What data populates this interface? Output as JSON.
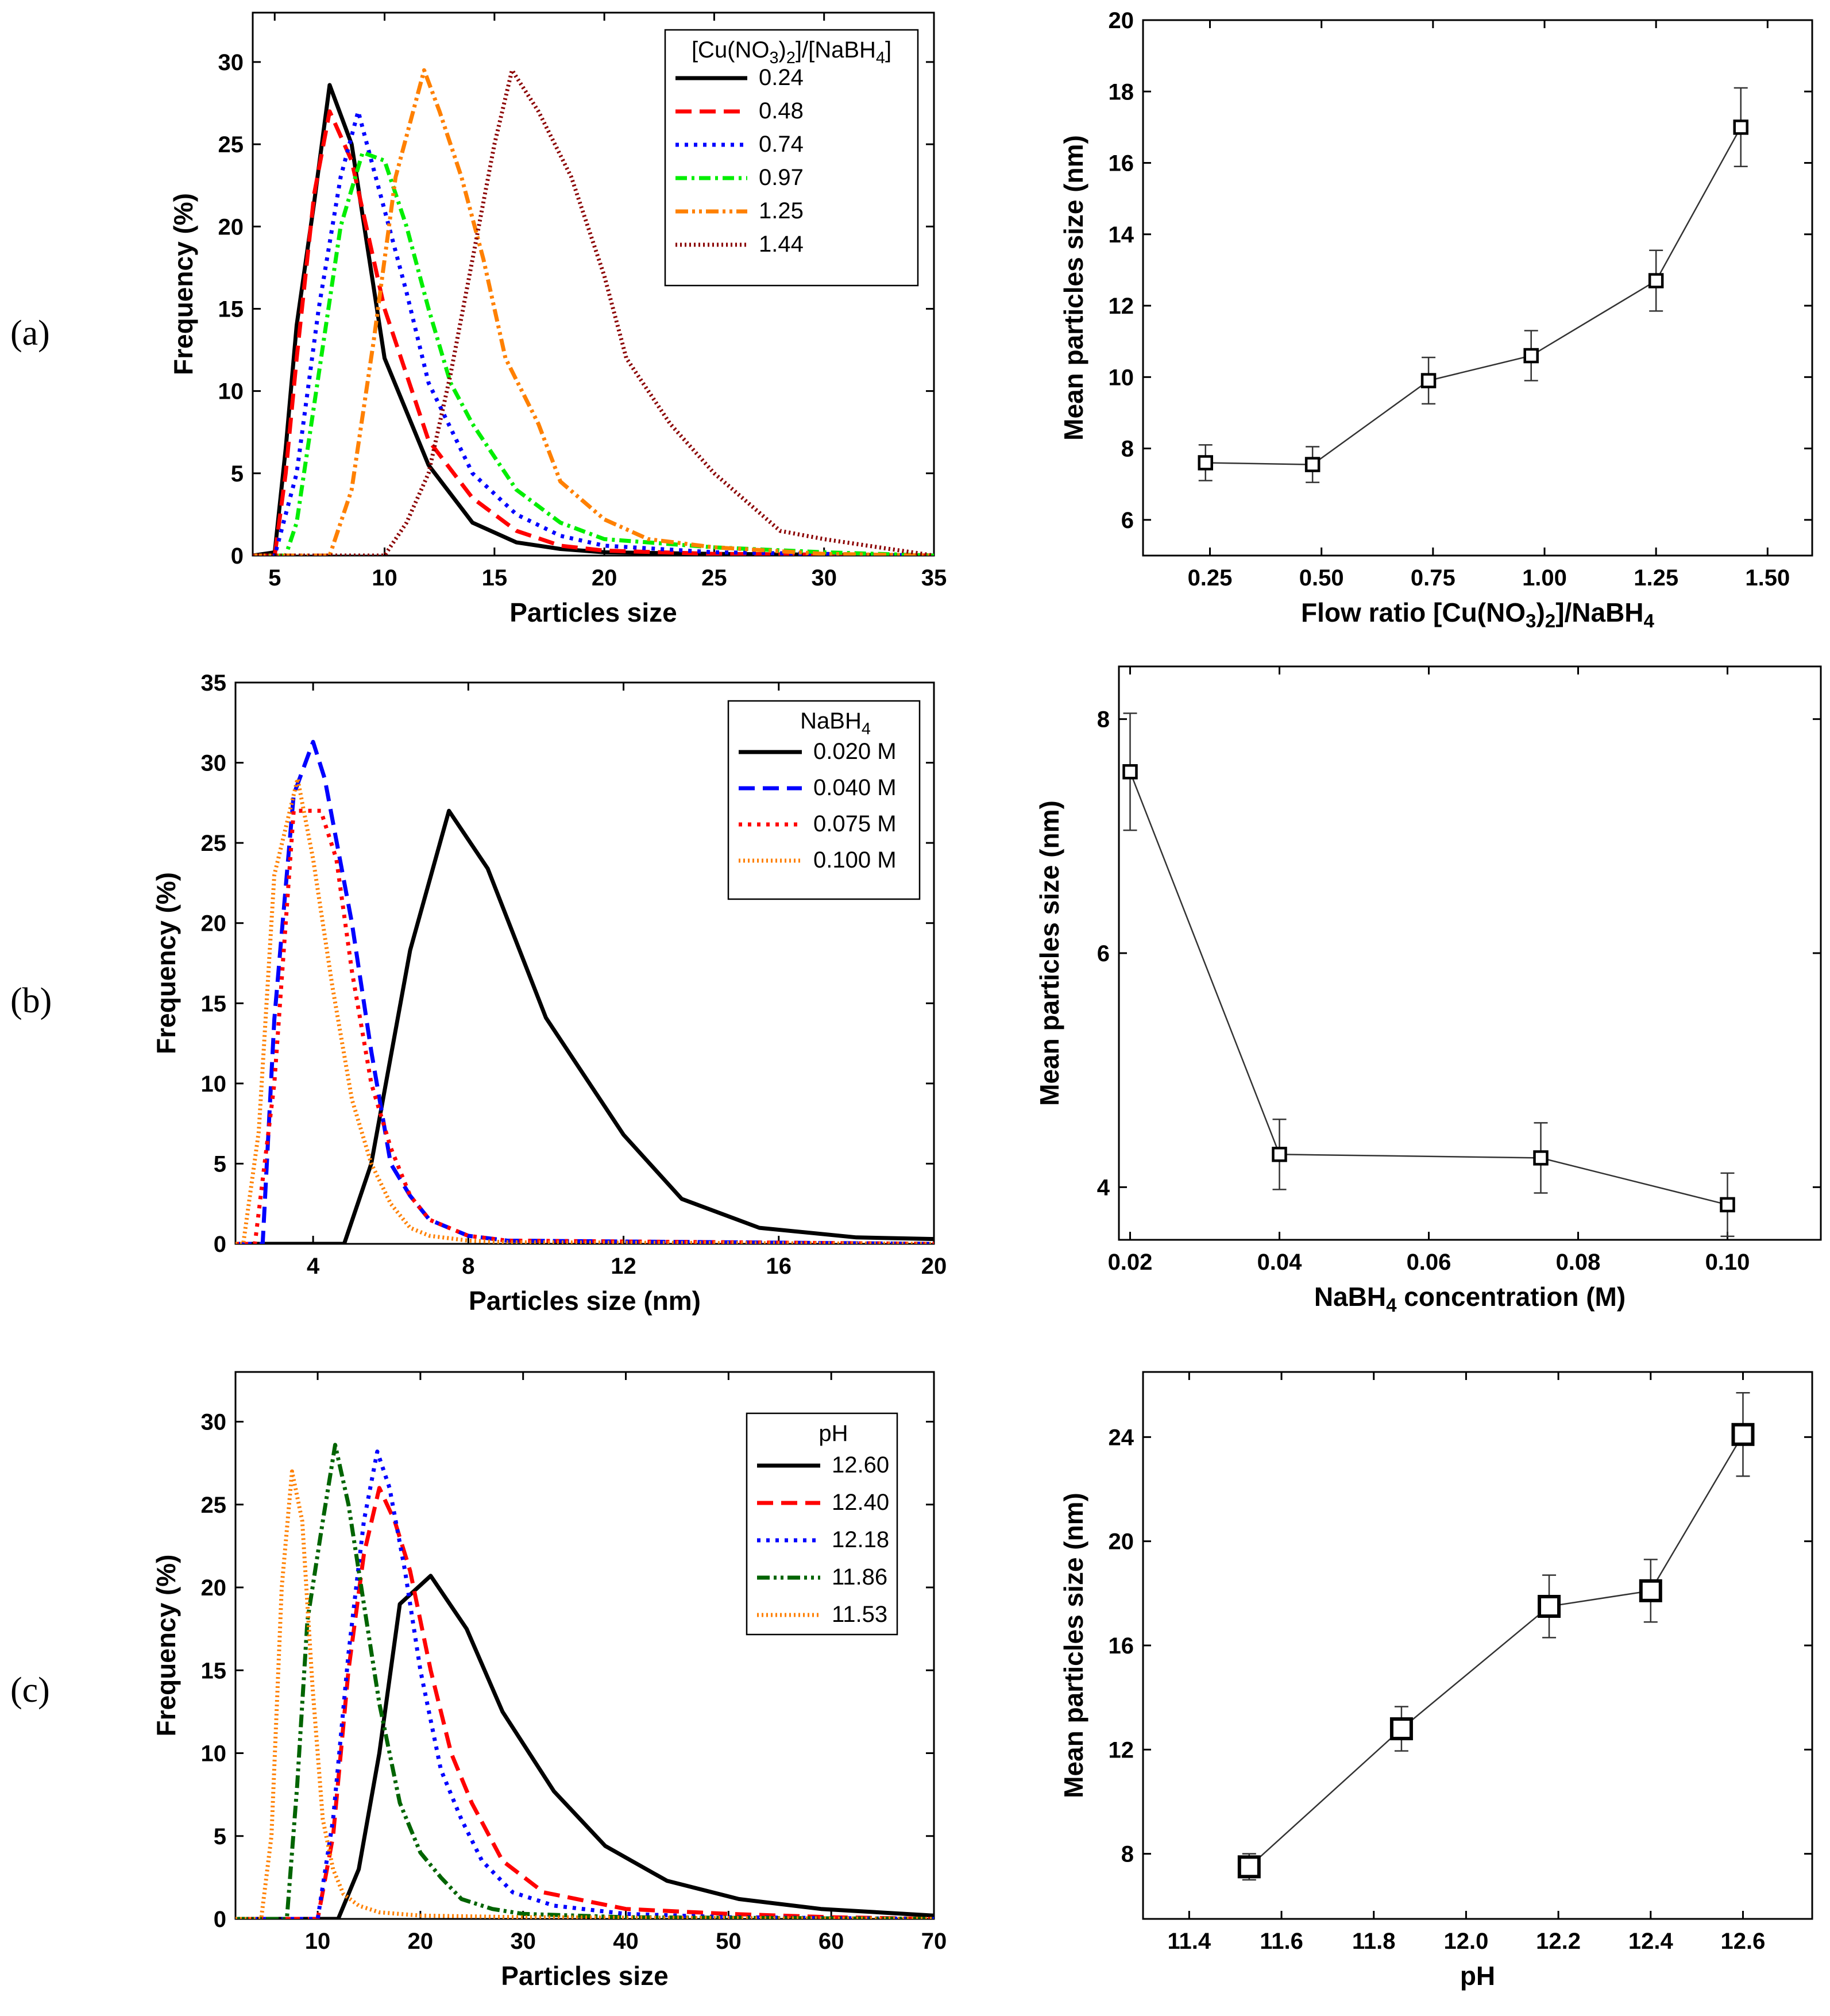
{
  "panel_labels": [
    "(a)",
    "(b)",
    "(c)"
  ],
  "chart_data": [
    {
      "id": "a-left",
      "type": "line",
      "xlabel": "Particles size",
      "ylabel": "Frequency (%)",
      "xlim": [
        4,
        35
      ],
      "ylim": [
        0,
        33
      ],
      "xticks": [
        5,
        10,
        15,
        20,
        25,
        30,
        35
      ],
      "yticks": [
        0,
        5,
        10,
        15,
        20,
        25,
        30
      ],
      "legend_title": "[Cu(NO3)2]/[NaBH4]",
      "legend_position": "top-right",
      "series": [
        {
          "name": "0.24",
          "color": "#000000",
          "dash": "solid",
          "x": [
            4,
            5,
            5.5,
            6,
            6.8,
            7.5,
            8.5,
            10,
            12,
            14,
            16,
            18,
            20,
            25,
            30,
            35
          ],
          "y": [
            0,
            0.2,
            6.5,
            14,
            21.5,
            28.6,
            25,
            12,
            5.5,
            2,
            0.8,
            0.4,
            0.2,
            0.1,
            0.05,
            0
          ]
        },
        {
          "name": "0.48",
          "color": "#ff0000",
          "dash": "longdash",
          "x": [
            4,
            5,
            5.5,
            6,
            6.8,
            7.5,
            8.5,
            10,
            12,
            14,
            16,
            18,
            20,
            25,
            30,
            35
          ],
          "y": [
            0,
            0,
            5,
            12,
            22,
            27,
            24,
            15,
            7,
            3.5,
            1.5,
            0.6,
            0.3,
            0.1,
            0.05,
            0
          ]
        },
        {
          "name": "0.74",
          "color": "#0000ff",
          "dash": "dot",
          "x": [
            4,
            5,
            6,
            7,
            8,
            8.8,
            10,
            11,
            12,
            14,
            16,
            18,
            20,
            25,
            30,
            35
          ],
          "y": [
            0,
            0,
            5,
            15,
            23,
            27,
            21,
            16,
            10.5,
            5,
            2.5,
            1.2,
            0.6,
            0.2,
            0.1,
            0
          ]
        },
        {
          "name": "0.97",
          "color": "#00ee00",
          "dash": "dashdot",
          "x": [
            4,
            5.5,
            6,
            7,
            8,
            9,
            10,
            11,
            12,
            13,
            14,
            16,
            18,
            20,
            25,
            30,
            35
          ],
          "y": [
            0,
            0,
            2,
            11,
            20,
            24.5,
            24,
            20,
            15,
            10.5,
            8,
            4,
            2,
            1,
            0.5,
            0.2,
            0
          ]
        },
        {
          "name": "1.25",
          "color": "#ff8000",
          "dash": "dashdotdot",
          "x": [
            4,
            7.5,
            8.5,
            9.5,
            10.5,
            11.8,
            12.5,
            13.5,
            14.5,
            15.5,
            17,
            18,
            20,
            22,
            25,
            30,
            35
          ],
          "y": [
            0,
            0,
            4,
            13,
            23,
            29.5,
            27,
            23,
            18,
            12,
            8,
            4.5,
            2.2,
            1,
            0.5,
            0.1,
            0
          ]
        },
        {
          "name": "1.44",
          "color": "#8b0000",
          "dash": "dense-dot",
          "x": [
            4,
            10,
            11,
            12,
            13,
            14,
            15,
            15.8,
            17,
            18.5,
            20,
            21,
            23,
            25,
            28,
            30,
            35
          ],
          "y": [
            0,
            0,
            2,
            5,
            11,
            18,
            25,
            29.5,
            27,
            23,
            17,
            12,
            8,
            5,
            1.5,
            1,
            0
          ]
        }
      ]
    },
    {
      "id": "a-right",
      "type": "scatter",
      "xlabel": "Flow ratio [Cu(NO3)2]/NaBH4",
      "ylabel": "Mean particles size (nm)",
      "xlim": [
        0.1,
        1.6
      ],
      "ylim": [
        5,
        20
      ],
      "xticks": [
        "0.25",
        "0.50",
        "0.75",
        "1.00",
        "1.25",
        "1.50"
      ],
      "yticks": [
        6,
        8,
        10,
        12,
        14,
        16,
        18,
        20
      ],
      "x": [
        0.24,
        0.48,
        0.74,
        0.97,
        1.25,
        1.44
      ],
      "y": [
        7.6,
        7.55,
        9.9,
        10.6,
        12.7,
        17.0
      ],
      "yerr": [
        0.5,
        0.5,
        0.65,
        0.7,
        0.85,
        1.1
      ]
    },
    {
      "id": "b-left",
      "type": "line",
      "xlabel": "Particles size (nm)",
      "ylabel": "Frequency (%)",
      "xlim": [
        2,
        20
      ],
      "ylim": [
        0,
        35
      ],
      "xticks": [
        4,
        8,
        12,
        16,
        20
      ],
      "yticks": [
        0,
        5,
        10,
        15,
        20,
        25,
        30,
        35
      ],
      "legend_title": "NaBH4",
      "legend_position": "top-right",
      "series": [
        {
          "name": "0.020 M",
          "color": "#000000",
          "dash": "solid",
          "x": [
            2,
            4.8,
            5.5,
            6.5,
            7.5,
            8.5,
            10,
            12,
            13.5,
            15.5,
            18,
            20
          ],
          "y": [
            0,
            0,
            5,
            18.3,
            27,
            23.4,
            14.1,
            6.8,
            2.8,
            1,
            0.4,
            0.3
          ]
        },
        {
          "name": "0.040 M",
          "color": "#0000ff",
          "dash": "longdash",
          "x": [
            2,
            2.7,
            3,
            3.5,
            4,
            4.3,
            5,
            5.5,
            6,
            6.5,
            7,
            7.5,
            8,
            9,
            20
          ],
          "y": [
            0,
            0,
            14,
            28,
            31.3,
            29,
            20,
            12,
            5,
            3,
            1.5,
            1,
            0.5,
            0.2,
            0
          ]
        },
        {
          "name": "0.075 M",
          "color": "#ff0000",
          "dash": "dot",
          "x": [
            2,
            2.5,
            3,
            3.5,
            4.2,
            4.6,
            5,
            5.5,
            6,
            6.5,
            7,
            8,
            9,
            20
          ],
          "y": [
            0,
            0,
            10,
            27,
            27,
            24,
            17,
            10,
            6,
            3,
            1.5,
            0.5,
            0.2,
            0
          ]
        },
        {
          "name": "0.100 M",
          "color": "#ff8000",
          "dash": "dense-dot",
          "x": [
            2,
            2.2,
            2.6,
            3,
            3.6,
            4,
            4.5,
            5,
            5.5,
            6,
            6.5,
            7,
            8,
            9,
            20
          ],
          "y": [
            0,
            0,
            7,
            23,
            29,
            24,
            16,
            9,
            5,
            2.5,
            1,
            0.5,
            0.2,
            0.1,
            0
          ]
        }
      ]
    },
    {
      "id": "b-right",
      "type": "scatter",
      "xlabel": "NaBH4 concentration (M)",
      "ylabel": "Mean particles size (nm)",
      "xlim": [
        0.0185,
        0.1125
      ],
      "ylim": [
        3.55,
        8.45
      ],
      "xticks": [
        "0.02",
        "0.04",
        "0.06",
        "0.08",
        "0.10"
      ],
      "yticks": [
        4,
        6,
        8
      ],
      "x": [
        0.02,
        0.04,
        0.075,
        0.1
      ],
      "y": [
        7.55,
        4.28,
        4.25,
        3.85
      ],
      "yerr": [
        0.5,
        0.3,
        0.3,
        0.27
      ]
    },
    {
      "id": "c-left",
      "type": "line",
      "xlabel": "Particles size",
      "ylabel": "Frequency (%)",
      "xlim": [
        2,
        70
      ],
      "ylim": [
        0,
        33
      ],
      "xticks": [
        10,
        20,
        30,
        40,
        50,
        60,
        70
      ],
      "yticks": [
        0,
        5,
        10,
        15,
        20,
        25,
        30
      ],
      "legend_title": "pH",
      "legend_position": "top-right",
      "series": [
        {
          "name": "12.60",
          "color": "#000000",
          "dash": "solid",
          "x": [
            2,
            12,
            14,
            16,
            18,
            21,
            24.5,
            28,
            33,
            38,
            44,
            51,
            59,
            70
          ],
          "y": [
            0,
            0,
            3,
            10,
            19,
            20.7,
            17.5,
            12.5,
            7.7,
            4.4,
            2.3,
            1.2,
            0.6,
            0.2
          ]
        },
        {
          "name": "12.40",
          "color": "#ff0000",
          "dash": "longdash",
          "x": [
            2,
            10,
            11.5,
            13,
            14.5,
            16,
            17.5,
            19,
            21,
            23,
            25,
            28,
            32,
            40,
            50,
            60,
            70
          ],
          "y": [
            0,
            0,
            5,
            15,
            22,
            26,
            24,
            21,
            15,
            10,
            7,
            3.5,
            1.6,
            0.6,
            0.3,
            0.1,
            0
          ]
        },
        {
          "name": "12.18",
          "color": "#0000ff",
          "dash": "dot",
          "x": [
            2,
            10,
            11.5,
            13,
            14.5,
            15.8,
            17,
            18.5,
            20,
            22,
            24,
            26,
            29,
            33,
            40,
            50,
            70
          ],
          "y": [
            0,
            0,
            6,
            16,
            24,
            28.2,
            26,
            21,
            15,
            9,
            6,
            3.5,
            1.6,
            0.8,
            0.3,
            0.1,
            0
          ]
        },
        {
          "name": "11.86",
          "color": "#006400",
          "dash": "dashdotdot",
          "x": [
            2,
            7,
            8,
            9,
            10.5,
            11.7,
            13,
            14.5,
            16,
            18,
            20,
            22,
            24,
            27,
            30,
            40,
            70
          ],
          "y": [
            0,
            0,
            8,
            18,
            24,
            28.6,
            25,
            19,
            13,
            7,
            4,
            2.5,
            1.2,
            0.6,
            0.3,
            0.1,
            0
          ]
        },
        {
          "name": "11.53",
          "color": "#ff8000",
          "dash": "dense-dot",
          "x": [
            2,
            4.5,
            5.5,
            6.5,
            7.5,
            8.5,
            9.5,
            10.5,
            11.5,
            12.5,
            14,
            16,
            20,
            30,
            70
          ],
          "y": [
            0,
            0,
            5,
            20,
            27,
            24,
            14,
            6,
            3,
            1.5,
            0.8,
            0.4,
            0.2,
            0.1,
            0
          ]
        }
      ]
    },
    {
      "id": "c-right",
      "type": "scatter",
      "xlabel": "pH",
      "ylabel": "Mean particles size (nm)",
      "xlim": [
        11.3,
        12.75
      ],
      "ylim": [
        5.5,
        26.5
      ],
      "xticks": [
        "11.4",
        "11.6",
        "11.8",
        "12.0",
        "12.2",
        "12.4",
        "12.6"
      ],
      "yticks": [
        8,
        12,
        16,
        20,
        24
      ],
      "x": [
        11.53,
        11.86,
        12.18,
        12.4,
        12.6
      ],
      "y": [
        7.5,
        12.8,
        17.5,
        18.1,
        24.1
      ],
      "yerr": [
        0.5,
        0.85,
        1.2,
        1.2,
        1.6
      ]
    }
  ]
}
